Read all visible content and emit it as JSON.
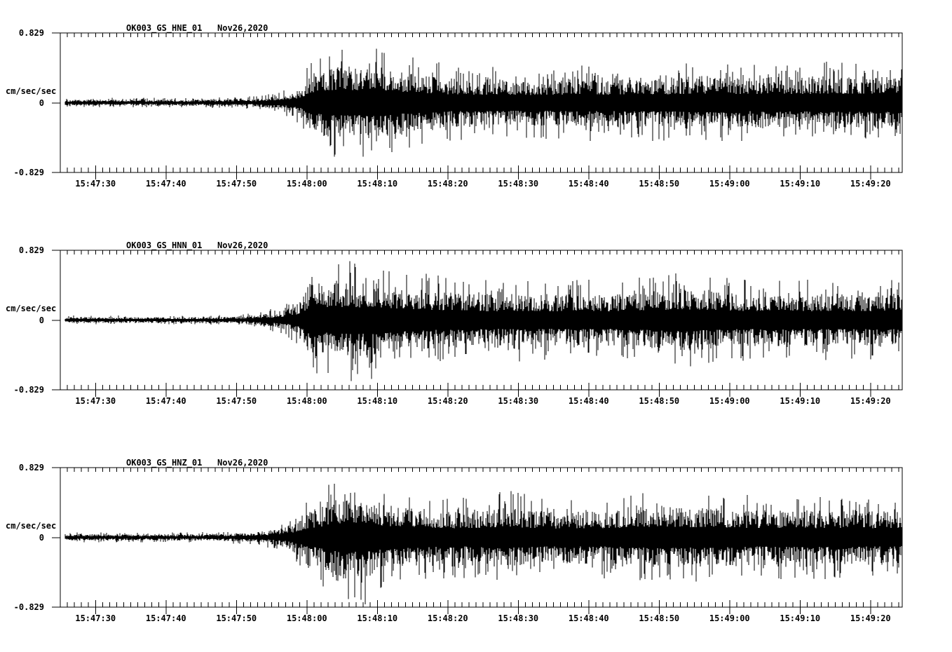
{
  "page": {
    "background": "#ffffff",
    "trace_color": "#000000"
  },
  "chart_data": [
    {
      "type": "line",
      "kind": "seismogram",
      "title": "OK003_GS_HNE_01   Nov26,2020",
      "ylabel": "cm/sec/sec",
      "ylim": [
        -0.829,
        0.829
      ],
      "ytick_labels": [
        "0.829",
        "0",
        "-0.829"
      ],
      "ytick_values": [
        0.829,
        0,
        -0.829
      ],
      "xtick_labels": [
        "15:47:30",
        "15:47:40",
        "15:47:50",
        "15:48:00",
        "15:48:10",
        "15:48:20",
        "15:48:30",
        "15:48:40",
        "15:48:50",
        "15:49:00",
        "15:49:10",
        "15:49:20"
      ],
      "x_span_seconds": 119.5,
      "first_tick_offset_seconds": 5,
      "major_tick_seconds": 10,
      "minor_tick_seconds": 1,
      "grid": false,
      "seed": 101,
      "envelope": [
        [
          0,
          0.055
        ],
        [
          18,
          0.055
        ],
        [
          24,
          0.06
        ],
        [
          28,
          0.075
        ],
        [
          30,
          0.1
        ],
        [
          32,
          0.14
        ],
        [
          33.5,
          0.2
        ],
        [
          34.5,
          0.3
        ],
        [
          35.5,
          0.5
        ],
        [
          37,
          0.55
        ],
        [
          38.5,
          0.62
        ],
        [
          40,
          0.6
        ],
        [
          42,
          0.58
        ],
        [
          43.5,
          0.66
        ],
        [
          45,
          0.62
        ],
        [
          47,
          0.58
        ],
        [
          49,
          0.52
        ],
        [
          52,
          0.46
        ],
        [
          55,
          0.42
        ],
        [
          58,
          0.39
        ],
        [
          62,
          0.41
        ],
        [
          66,
          0.38
        ],
        [
          70,
          0.4
        ],
        [
          74,
          0.42
        ],
        [
          78,
          0.4
        ],
        [
          82,
          0.43
        ],
        [
          86,
          0.41
        ],
        [
          90,
          0.46
        ],
        [
          94,
          0.44
        ],
        [
          98,
          0.42
        ],
        [
          102,
          0.45
        ],
        [
          106,
          0.43
        ],
        [
          110,
          0.45
        ],
        [
          114,
          0.43
        ],
        [
          117,
          0.46
        ],
        [
          119.5,
          0.45
        ]
      ]
    },
    {
      "type": "line",
      "kind": "seismogram",
      "title": "OK003_GS_HNN_01   Nov26,2020",
      "ylabel": "cm/sec/sec",
      "ylim": [
        -0.829,
        0.829
      ],
      "ytick_labels": [
        "0.829",
        "0",
        "-0.829"
      ],
      "ytick_values": [
        0.829,
        0,
        -0.829
      ],
      "xtick_labels": [
        "15:47:30",
        "15:47:40",
        "15:47:50",
        "15:48:00",
        "15:48:10",
        "15:48:20",
        "15:48:30",
        "15:48:40",
        "15:48:50",
        "15:49:00",
        "15:49:10",
        "15:49:20"
      ],
      "x_span_seconds": 119.5,
      "first_tick_offset_seconds": 5,
      "major_tick_seconds": 10,
      "minor_tick_seconds": 1,
      "grid": false,
      "seed": 202,
      "envelope": [
        [
          0,
          0.05
        ],
        [
          18,
          0.05
        ],
        [
          23,
          0.055
        ],
        [
          26,
          0.07
        ],
        [
          28,
          0.09
        ],
        [
          30,
          0.12
        ],
        [
          32,
          0.17
        ],
        [
          33.5,
          0.26
        ],
        [
          34.8,
          0.45
        ],
        [
          35.8,
          0.82
        ],
        [
          36.8,
          0.72
        ],
        [
          37.6,
          0.6
        ],
        [
          38.8,
          0.72
        ],
        [
          40,
          0.64
        ],
        [
          41,
          0.7
        ],
        [
          42.5,
          0.62
        ],
        [
          44,
          0.66
        ],
        [
          46,
          0.6
        ],
        [
          48,
          0.56
        ],
        [
          51,
          0.52
        ],
        [
          54,
          0.48
        ],
        [
          57,
          0.45
        ],
        [
          61,
          0.43
        ],
        [
          65,
          0.45
        ],
        [
          69,
          0.43
        ],
        [
          73,
          0.45
        ],
        [
          77,
          0.43
        ],
        [
          81,
          0.46
        ],
        [
          85,
          0.5
        ],
        [
          88,
          0.53
        ],
        [
          91,
          0.5
        ],
        [
          95,
          0.46
        ],
        [
          99,
          0.44
        ],
        [
          103,
          0.46
        ],
        [
          107,
          0.44
        ],
        [
          111,
          0.45
        ],
        [
          115,
          0.43
        ],
        [
          119.5,
          0.46
        ]
      ]
    },
    {
      "type": "line",
      "kind": "seismogram",
      "title": "OK003_GS_HNZ_01   Nov26,2020",
      "ylabel": "cm/sec/sec",
      "ylim": [
        -0.829,
        0.829
      ],
      "ytick_labels": [
        "0.829",
        "0",
        "-0.829"
      ],
      "ytick_values": [
        0.829,
        0,
        -0.829
      ],
      "xtick_labels": [
        "15:47:30",
        "15:47:40",
        "15:47:50",
        "15:48:00",
        "15:48:10",
        "15:48:20",
        "15:48:30",
        "15:48:40",
        "15:48:50",
        "15:49:00",
        "15:49:10",
        "15:49:20"
      ],
      "x_span_seconds": 119.5,
      "first_tick_offset_seconds": 5,
      "major_tick_seconds": 10,
      "minor_tick_seconds": 1,
      "grid": false,
      "seed": 303,
      "envelope": [
        [
          0,
          0.055
        ],
        [
          18,
          0.055
        ],
        [
          23,
          0.06
        ],
        [
          26,
          0.075
        ],
        [
          29,
          0.1
        ],
        [
          31,
          0.14
        ],
        [
          32.5,
          0.2
        ],
        [
          34,
          0.32
        ],
        [
          35,
          0.44
        ],
        [
          36.5,
          0.5
        ],
        [
          38,
          0.56
        ],
        [
          39.5,
          0.68
        ],
        [
          40.8,
          0.8
        ],
        [
          42,
          0.7
        ],
        [
          43,
          0.76
        ],
        [
          44.5,
          0.62
        ],
        [
          46,
          0.58
        ],
        [
          48,
          0.54
        ],
        [
          51,
          0.5
        ],
        [
          54,
          0.46
        ],
        [
          58,
          0.44
        ],
        [
          61,
          0.5
        ],
        [
          63,
          0.52
        ],
        [
          66,
          0.47
        ],
        [
          70,
          0.44
        ],
        [
          74,
          0.46
        ],
        [
          78,
          0.44
        ],
        [
          82,
          0.48
        ],
        [
          85,
          0.55
        ],
        [
          88,
          0.5
        ],
        [
          92,
          0.52
        ],
        [
          96,
          0.47
        ],
        [
          100,
          0.45
        ],
        [
          104,
          0.47
        ],
        [
          108,
          0.45
        ],
        [
          112,
          0.47
        ],
        [
          116,
          0.44
        ],
        [
          119.5,
          0.43
        ]
      ]
    }
  ]
}
